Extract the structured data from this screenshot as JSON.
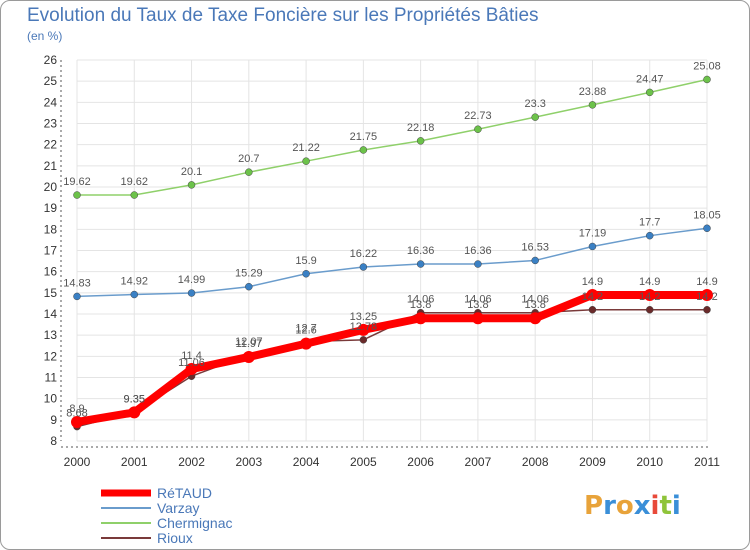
{
  "title": "Evolution du Taux de Taxe Foncière sur les Propriétés Bâties",
  "subtitle": "(en %)",
  "logo": {
    "letters": [
      "P",
      "r",
      "o",
      "x",
      "i",
      "t",
      "i"
    ],
    "colors": [
      "#e8a33a",
      "#3a8fd8",
      "#e8a33a",
      "#3a8fd8",
      "#e84a3a",
      "#8fc43a",
      "#3a8fd8"
    ]
  },
  "chart_data": {
    "type": "line",
    "x": [
      2000,
      2001,
      2002,
      2003,
      2004,
      2005,
      2006,
      2007,
      2008,
      2009,
      2010,
      2011
    ],
    "ylim": [
      8,
      26
    ],
    "yticks": [
      8,
      9,
      10,
      11,
      12,
      13,
      14,
      15,
      16,
      17,
      18,
      19,
      20,
      21,
      22,
      23,
      24,
      25,
      26
    ],
    "grid": true,
    "legend_position": "bottom-left",
    "series": [
      {
        "name": "Chermignac",
        "color": "#8fd06a",
        "point_color": "#6cc24a",
        "width": 1.5,
        "values": [
          19.62,
          19.62,
          20.1,
          20.7,
          21.22,
          21.75,
          22.18,
          22.73,
          23.3,
          23.88,
          24.47,
          25.08
        ],
        "labels": [
          "19.62",
          "19.62",
          "20.1",
          "20.7",
          "21.22",
          "21.75",
          "22.18",
          "22.73",
          "23.3",
          "23.88",
          "24.47",
          "25.08"
        ]
      },
      {
        "name": "Varzay",
        "color": "#6a9ccc",
        "point_color": "#3a80c4",
        "width": 1.5,
        "values": [
          14.83,
          14.92,
          14.99,
          15.29,
          15.9,
          16.22,
          16.36,
          16.36,
          16.53,
          17.19,
          17.7,
          18.05
        ],
        "labels": [
          "14.83",
          "14.92",
          "14.99",
          "15.29",
          "15.9",
          "16.22",
          "16.36",
          "16.36",
          "16.53",
          "17.19",
          "17.7",
          "18.05"
        ]
      },
      {
        "name": "Rioux",
        "color": "#7a3a3a",
        "point_color": "#6a2a2a",
        "width": 1.5,
        "values": [
          8.68,
          9.35,
          11.06,
          12.07,
          12.7,
          12.78,
          14.06,
          14.06,
          14.06,
          14.2,
          14.2,
          14.2
        ],
        "labels": [
          "8.68",
          "9.35",
          "11.06",
          "12.07",
          "12.7",
          "12.78",
          "14.06",
          "14.06",
          "14.06",
          "14.2",
          "14.2",
          "14.2"
        ]
      },
      {
        "name": "RéTAUD",
        "color": "#ff0000",
        "point_color": "#ff0000",
        "width": 8,
        "values": [
          8.9,
          9.35,
          11.4,
          11.97,
          12.6,
          13.25,
          13.8,
          13.8,
          13.8,
          14.9,
          14.9,
          14.9
        ],
        "labels": [
          "8.9",
          "9.35",
          "11.4",
          "11.97",
          "12.6",
          "13.25",
          "13.8",
          "13.8",
          "13.8",
          "14.9",
          "14.9",
          "14.9"
        ]
      }
    ]
  }
}
